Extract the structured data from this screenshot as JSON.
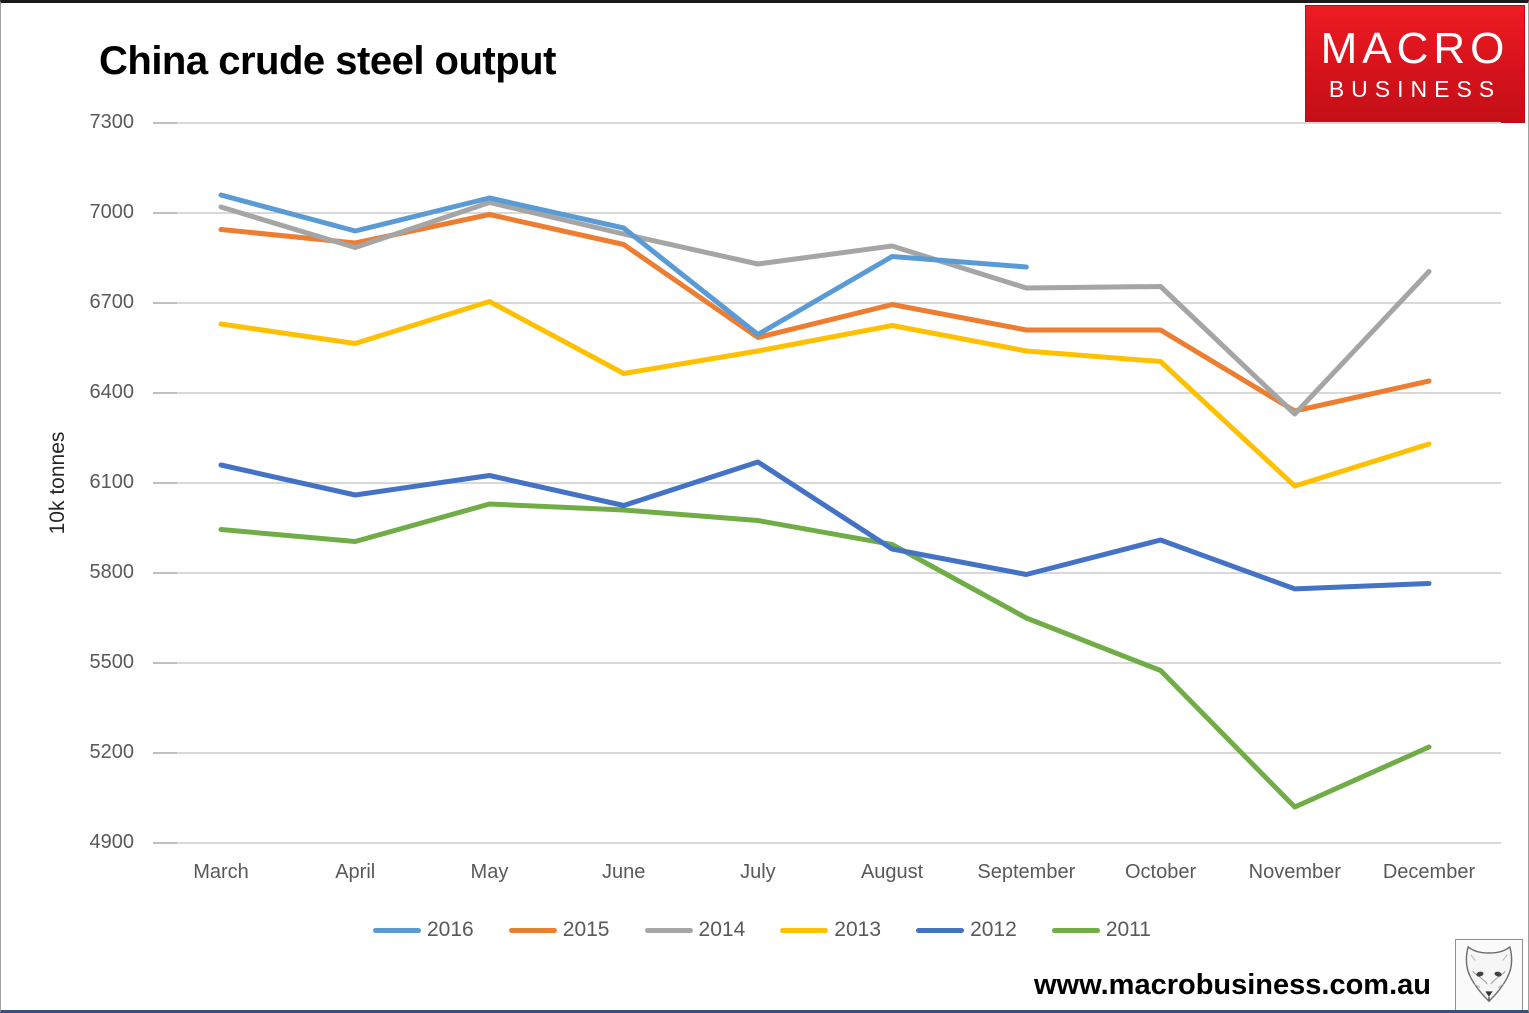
{
  "page": {
    "title": "China crude steel output",
    "footer_url": "www.macrobusiness.com.au"
  },
  "logo": {
    "line1": "MACRO",
    "line2": "BUSINESS",
    "bg_color": "#d5121b",
    "text_color": "#ffffff"
  },
  "chart_data": {
    "type": "line",
    "title": "China crude steel output",
    "xlabel": "",
    "ylabel": "10k tonnes",
    "categories": [
      "March",
      "April",
      "May",
      "June",
      "July",
      "August",
      "September",
      "October",
      "November",
      "December"
    ],
    "yticks": [
      7300,
      7000,
      6700,
      6400,
      6100,
      5800,
      5500,
      5200,
      4900
    ],
    "ylim": [
      4900,
      7300
    ],
    "grid": true,
    "legend_position": "bottom",
    "gridline_color": "#d9d9d9",
    "series": [
      {
        "name": "2016",
        "color": "#5B9BD5",
        "values": [
          7060,
          6940,
          7050,
          6950,
          6595,
          6855,
          6820,
          null,
          null,
          null
        ]
      },
      {
        "name": "2015",
        "color": "#ED7D31",
        "values": [
          6945,
          6900,
          6995,
          6895,
          6585,
          6695,
          6610,
          6610,
          6340,
          6440
        ]
      },
      {
        "name": "2014",
        "color": "#A5A5A5",
        "values": [
          7020,
          6885,
          7035,
          6930,
          6830,
          6890,
          6750,
          6755,
          6330,
          6805
        ]
      },
      {
        "name": "2013",
        "color": "#FFC000",
        "values": [
          6630,
          6565,
          6705,
          6465,
          6540,
          6625,
          6540,
          6505,
          6090,
          6230
        ]
      },
      {
        "name": "2012",
        "color": "#4472C4",
        "values": [
          6160,
          6060,
          6125,
          6025,
          6170,
          5880,
          5795,
          5910,
          5747,
          5765
        ]
      },
      {
        "name": "2011",
        "color": "#70AD47",
        "values": [
          5945,
          5905,
          6030,
          6010,
          5975,
          5895,
          5650,
          5475,
          5020,
          5220
        ]
      }
    ]
  }
}
